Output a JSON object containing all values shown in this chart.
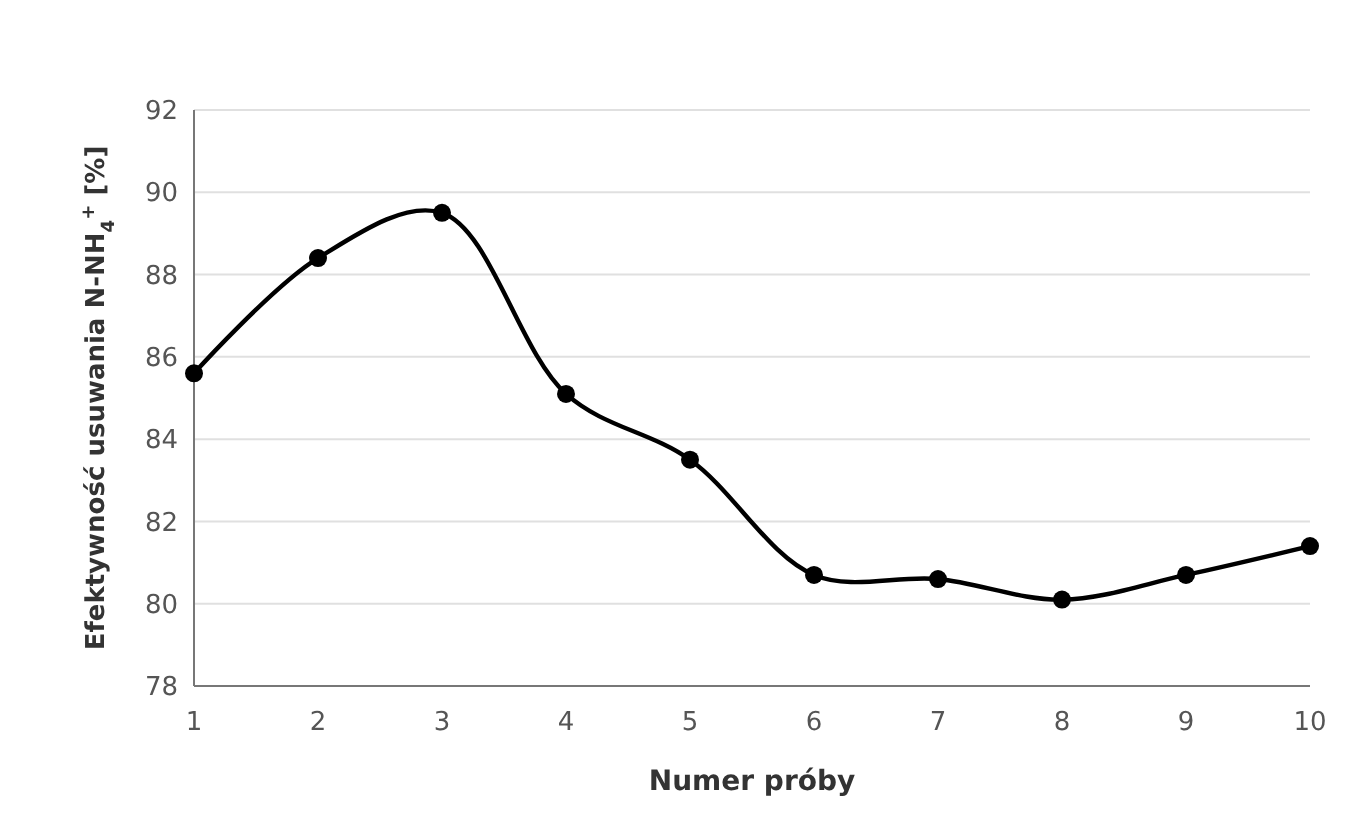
{
  "chart_data": {
    "type": "line",
    "xlabel": "Numer próby",
    "ylabel": "Efektywność usuwania N-NH$_{4}$$^{+}$ [%]",
    "x": [
      1,
      2,
      3,
      4,
      5,
      6,
      7,
      8,
      9,
      10
    ],
    "series": [
      {
        "color": "#000000",
        "values": [
          85.6,
          88.4,
          89.5,
          85.1,
          83.5,
          80.7,
          80.6,
          80.1,
          80.7,
          81.4
        ]
      }
    ],
    "xlim": [
      1,
      10
    ],
    "xticks": [
      1,
      2,
      3,
      4,
      5,
      6,
      7,
      8,
      9,
      10
    ],
    "ylim": [
      78,
      92
    ],
    "yticks": [
      78,
      80,
      82,
      84,
      86,
      88,
      90,
      92
    ],
    "grid": "y",
    "marker": "circle",
    "line_style": "solid"
  }
}
